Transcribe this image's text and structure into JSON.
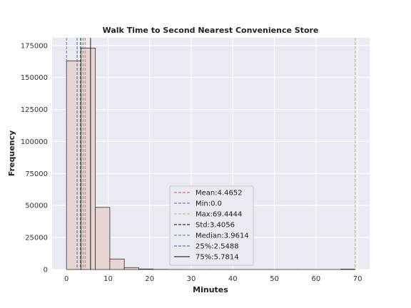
{
  "chart_data": {
    "type": "histogram",
    "title": "Walk Time to Second Nearest Convenience Store",
    "xlabel": "Minutes",
    "ylabel": "Frequency",
    "xlim": [
      -3.47,
      72.9
    ],
    "ylim": [
      0,
      181000
    ],
    "x_ticks": [
      0,
      10,
      20,
      30,
      40,
      50,
      60,
      70
    ],
    "y_ticks": [
      0,
      25000,
      50000,
      75000,
      100000,
      125000,
      150000,
      175000
    ],
    "bin_width": 3.4722,
    "bins": [
      {
        "x0": 0.0,
        "count": 163000
      },
      {
        "x0": 3.4722,
        "count": 173000
      },
      {
        "x0": 6.9444,
        "count": 48500
      },
      {
        "x0": 10.4167,
        "count": 8200
      },
      {
        "x0": 13.8889,
        "count": 1500
      },
      {
        "x0": 17.3611,
        "count": 400
      },
      {
        "x0": 20.8333,
        "count": 80
      },
      {
        "x0": 24.3056,
        "count": 20
      },
      {
        "x0": 27.7778,
        "count": 5
      },
      {
        "x0": 31.25,
        "count": 3
      },
      {
        "x0": 34.7222,
        "count": 2
      },
      {
        "x0": 38.1944,
        "count": 2
      },
      {
        "x0": 41.6667,
        "count": 1
      },
      {
        "x0": 45.1389,
        "count": 1
      },
      {
        "x0": 48.6111,
        "count": 1
      },
      {
        "x0": 52.0833,
        "count": 1
      },
      {
        "x0": 55.5556,
        "count": 1
      },
      {
        "x0": 59.0278,
        "count": 1
      },
      {
        "x0": 62.5,
        "count": 1
      },
      {
        "x0": 65.9722,
        "count": 300
      }
    ],
    "bar_fill": "#e6d5d3",
    "bar_edge": "#3a2a2a",
    "background": "#eaeaf2",
    "grid": true,
    "legend_position": "lower-center",
    "stat_lines": [
      {
        "label": "Mean:4.4652",
        "value": 4.4652,
        "color": "#d9534f",
        "dash": "4,2"
      },
      {
        "label": "Min:0.0",
        "value": 0.0,
        "color": "#5b5fc7",
        "dash": "4,2"
      },
      {
        "label": "Max:69.4444",
        "value": 69.4444,
        "color": "#b5b86a",
        "dash": "4,2"
      },
      {
        "label": "Std:3.4056",
        "value": 3.4056,
        "color": "#000000",
        "dash": "4,2"
      },
      {
        "label": "Median:3.9614",
        "value": 3.9614,
        "color": "#2e9e5a",
        "dash": "4,2"
      },
      {
        "label": "25%:2.5488",
        "value": 2.5488,
        "color": "#3b5bb5",
        "dash": "4,2"
      },
      {
        "label": "75%:5.7814",
        "value": 5.7814,
        "color": "#000000",
        "dash": ""
      }
    ]
  }
}
